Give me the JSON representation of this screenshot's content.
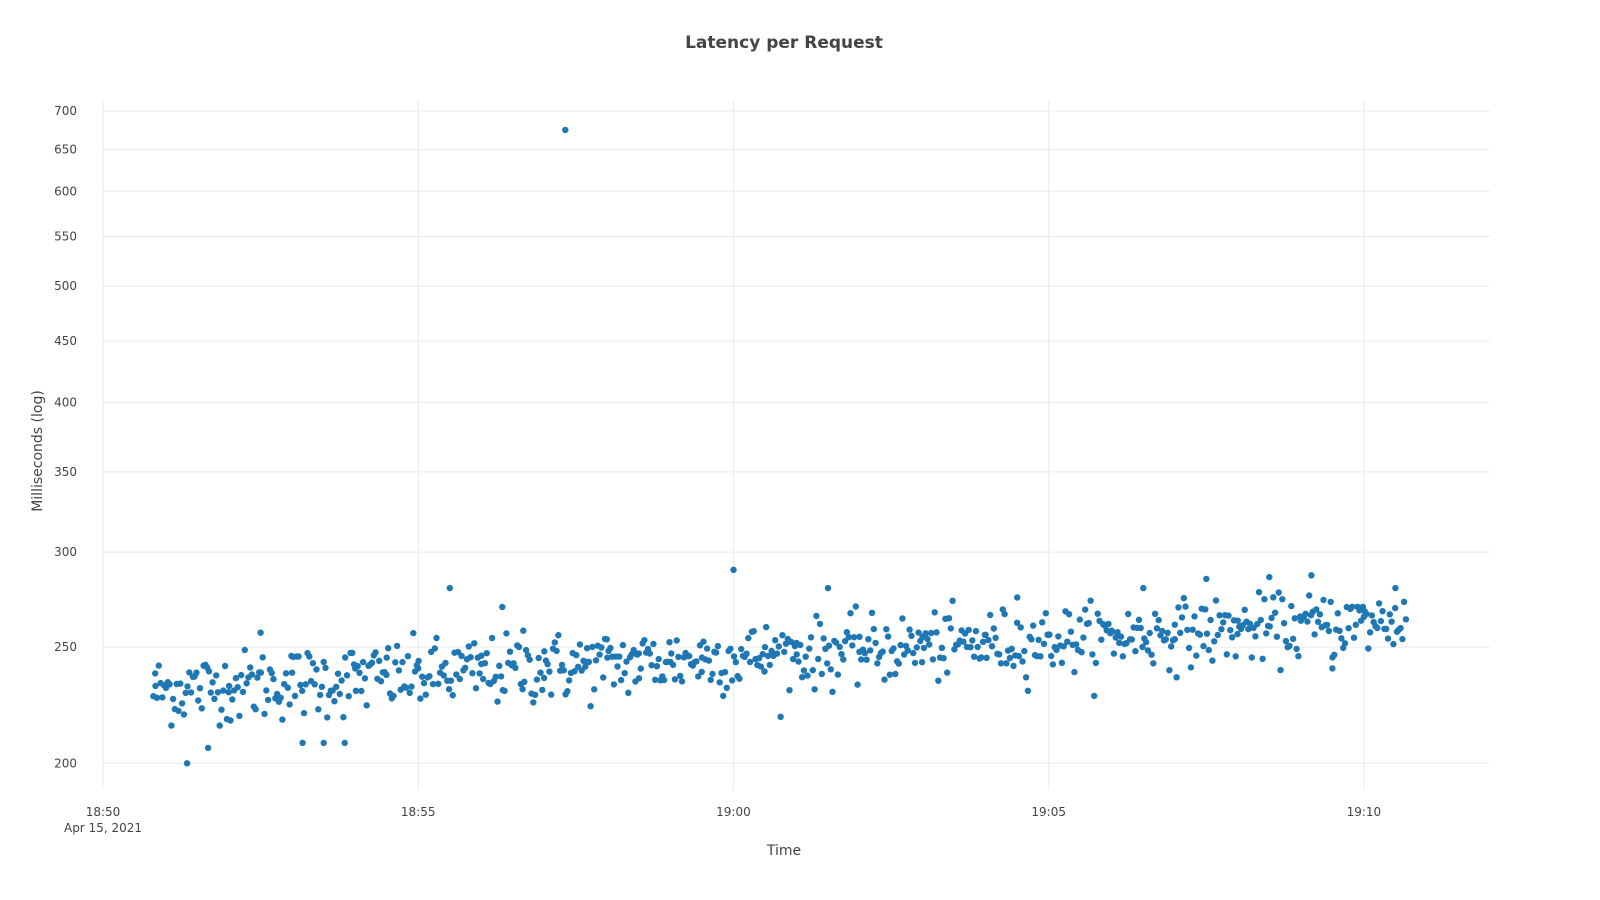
{
  "chart_data": {
    "type": "scatter",
    "title": "Latency per Request",
    "xlabel": "Time",
    "ylabel": "Milliseconds (log)",
    "y_scale": "log",
    "ylim": [
      190,
      715
    ],
    "xlim": [
      "2021-04-15 18:50:00",
      "2021-04-15 19:12:00"
    ],
    "x_ticks": [
      {
        "value": "2021-04-15 18:50:00",
        "label": "18:50",
        "sublabel": "Apr 15, 2021"
      },
      {
        "value": "2021-04-15 18:55:00",
        "label": "18:55",
        "sublabel": ""
      },
      {
        "value": "2021-04-15 19:00:00",
        "label": "19:00",
        "sublabel": ""
      },
      {
        "value": "2021-04-15 19:05:00",
        "label": "19:05",
        "sublabel": ""
      },
      {
        "value": "2021-04-15 19:10:00",
        "label": "19:10",
        "sublabel": ""
      }
    ],
    "y_ticks": [
      200,
      250,
      300,
      350,
      400,
      450,
      500,
      550,
      600,
      650,
      700
    ],
    "marker_color": "#1f77b4",
    "grid": true,
    "series": [
      {
        "x_start": "2021-04-15 18:50:48",
        "x_end": "2021-04-15 19:10:40",
        "summary_points": [
          [
            "2021-04-15 18:50:50",
            232
          ],
          [
            "2021-04-15 18:51:20",
            200
          ],
          [
            "2021-04-15 18:51:40",
            206
          ],
          [
            "2021-04-15 18:52:00",
            232
          ],
          [
            "2021-04-15 18:52:30",
            257
          ],
          [
            "2021-04-15 18:53:00",
            238
          ],
          [
            "2021-04-15 18:53:10",
            208
          ],
          [
            "2021-04-15 18:53:30",
            208
          ],
          [
            "2021-04-15 18:53:50",
            208
          ],
          [
            "2021-04-15 18:54:00",
            240
          ],
          [
            "2021-04-15 18:54:30",
            245
          ],
          [
            "2021-04-15 18:55:00",
            240
          ],
          [
            "2021-04-15 18:55:30",
            280
          ],
          [
            "2021-04-15 18:56:00",
            242
          ],
          [
            "2021-04-15 18:56:20",
            270
          ],
          [
            "2021-04-15 18:56:40",
            258
          ],
          [
            "2021-04-15 18:57:00",
            248
          ],
          [
            "2021-04-15 18:57:20",
            675
          ],
          [
            "2021-04-15 18:57:40",
            243
          ],
          [
            "2021-04-15 18:58:00",
            245
          ],
          [
            "2021-04-15 18:58:30",
            247
          ],
          [
            "2021-04-15 18:59:00",
            243
          ],
          [
            "2021-04-15 18:59:30",
            245
          ],
          [
            "2021-04-15 19:00:00",
            290
          ],
          [
            "2021-04-15 19:00:30",
            250
          ],
          [
            "2021-04-15 19:01:00",
            252
          ],
          [
            "2021-04-15 19:01:30",
            280
          ],
          [
            "2021-04-15 19:02:00",
            255
          ],
          [
            "2021-04-15 19:03:00",
            255
          ],
          [
            "2021-04-15 19:04:00",
            256
          ],
          [
            "2021-04-15 19:04:30",
            275
          ],
          [
            "2021-04-15 19:05:00",
            256
          ],
          [
            "2021-04-15 19:06:00",
            258
          ],
          [
            "2021-04-15 19:06:30",
            280
          ],
          [
            "2021-04-15 19:07:00",
            261
          ],
          [
            "2021-04-15 19:07:30",
            285
          ],
          [
            "2021-04-15 19:08:00",
            263
          ],
          [
            "2021-04-15 19:08:30",
            286
          ],
          [
            "2021-04-15 19:09:00",
            263
          ],
          [
            "2021-04-15 19:09:10",
            287
          ],
          [
            "2021-04-15 19:09:30",
            240
          ],
          [
            "2021-04-15 19:10:00",
            265
          ],
          [
            "2021-04-15 19:10:30",
            280
          ]
        ]
      }
    ]
  }
}
